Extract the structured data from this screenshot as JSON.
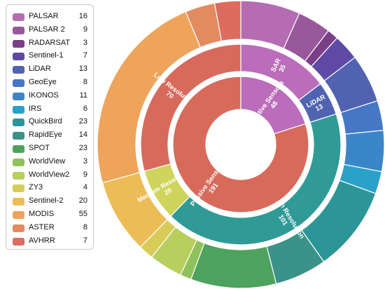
{
  "chart_data": {
    "type": "sunburst",
    "legend": [
      {
        "name": "PALSAR",
        "value": 16,
        "color": "#b56cb3"
      },
      {
        "name": "PALSAR 2",
        "value": 9,
        "color": "#98589a"
      },
      {
        "name": "RADARSAT",
        "value": 3,
        "color": "#7a3f86"
      },
      {
        "name": "Sentinel-1",
        "value": 7,
        "color": "#5e4aa5"
      },
      {
        "name": "LiDAR",
        "value": 13,
        "color": "#5162b0"
      },
      {
        "name": "GeoEye",
        "value": 8,
        "color": "#4577c5"
      },
      {
        "name": "IKONOS",
        "value": 11,
        "color": "#3a86c8"
      },
      {
        "name": "IRS",
        "value": 6,
        "color": "#2aa1c9"
      },
      {
        "name": "QuickBird",
        "value": 23,
        "color": "#2c9597"
      },
      {
        "name": "RapidEye",
        "value": 14,
        "color": "#3a9288"
      },
      {
        "name": "SPOT",
        "value": 23,
        "color": "#4da25d"
      },
      {
        "name": "WorldView",
        "value": 3,
        "color": "#8fc25a"
      },
      {
        "name": "WorldView2",
        "value": 9,
        "color": "#b8cf5e"
      },
      {
        "name": "ZY3",
        "value": 4,
        "color": "#d7cc58"
      },
      {
        "name": "Sentinel-2",
        "value": 20,
        "color": "#ecbd56"
      },
      {
        "name": "MODIS",
        "value": 55,
        "color": "#eea45a"
      },
      {
        "name": "ASTER",
        "value": 8,
        "color": "#e48a60"
      },
      {
        "name": "AVHRR",
        "value": 7,
        "color": "#dd6b5e"
      }
    ],
    "rings": {
      "inner": [
        {
          "label": "Active Sensors",
          "value": 48,
          "color": "#bb6cba"
        },
        {
          "label": "Passive Sensors",
          "value": 191,
          "color": "#d86a5c"
        }
      ],
      "middle": [
        {
          "label": "SAR",
          "value": 35,
          "color": "#bb6cba"
        },
        {
          "label": "LiDAR",
          "value": 13,
          "color": "#4f63b1"
        },
        {
          "label": "High Resolution",
          "value": 101,
          "color": "#2f9a96"
        },
        {
          "label": "Medium Resolution",
          "value": 20,
          "color": "#cfd45a"
        },
        {
          "label": "Low Resolution",
          "value": 70,
          "color": "#d86a5c"
        }
      ]
    }
  }
}
